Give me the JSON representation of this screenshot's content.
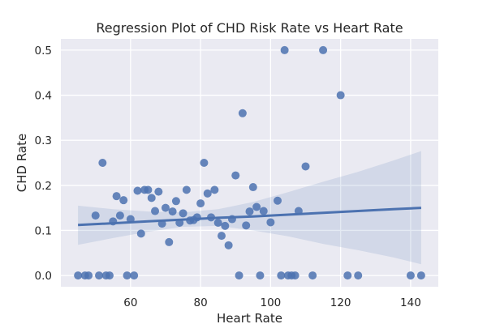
{
  "chart_data": {
    "type": "scatter",
    "title": "Regression Plot of CHD Risk Rate vs Heart Rate",
    "xlabel": "Heart Rate",
    "ylabel": "CHD Rate",
    "xlim": [
      40.1,
      147.9
    ],
    "ylim": [
      -0.025,
      0.525
    ],
    "xticks": [
      60,
      80,
      100,
      120,
      140
    ],
    "xtick_labels": [
      "60",
      "80",
      "100",
      "120",
      "140"
    ],
    "yticks": [
      0.0,
      0.1,
      0.2,
      0.3,
      0.4,
      0.5
    ],
    "ytick_labels": [
      "0.0",
      "0.1",
      "0.2",
      "0.3",
      "0.4",
      "0.5"
    ],
    "grid": true,
    "colors": {
      "background": "#eaeaf2",
      "grid": "#ffffff",
      "points": "#4c72b0",
      "line": "#4c72b0",
      "band": "#4c72b0"
    },
    "points": {
      "x": [
        45,
        47,
        48,
        50,
        51,
        52,
        53,
        54,
        55,
        56,
        57,
        58,
        59,
        60,
        61,
        62,
        63,
        64,
        65,
        66,
        67,
        68,
        69,
        70,
        71,
        72,
        73,
        74,
        75,
        76,
        77,
        78,
        79,
        80,
        81,
        82,
        83,
        84,
        85,
        86,
        87,
        88,
        89,
        90,
        91,
        92,
        93,
        94,
        95,
        96,
        97,
        98,
        100,
        102,
        103,
        104,
        105,
        106,
        107,
        108,
        110,
        112,
        115,
        120,
        122,
        125,
        140,
        143
      ],
      "y": [
        0.0,
        0.0,
        0.0,
        0.133,
        0.0,
        0.25,
        0.0,
        0.0,
        0.12,
        0.176,
        0.133,
        0.167,
        0.0,
        0.125,
        0.0,
        0.188,
        0.093,
        0.19,
        0.19,
        0.172,
        0.143,
        0.186,
        0.115,
        0.15,
        0.074,
        0.142,
        0.165,
        0.117,
        0.138,
        0.19,
        0.122,
        0.123,
        0.129,
        0.16,
        0.25,
        0.182,
        0.129,
        0.19,
        0.117,
        0.088,
        0.11,
        0.067,
        0.125,
        0.222,
        0.0,
        0.36,
        0.111,
        0.142,
        0.196,
        0.152,
        0.0,
        0.143,
        0.118,
        0.166,
        0.0,
        0.5,
        0.0,
        0.0,
        0.0,
        0.143,
        0.242,
        0.0,
        0.5,
        0.4,
        0.0,
        0.0,
        0.0,
        0.0
      ]
    },
    "regression": {
      "x": [
        45,
        55,
        65,
        75,
        85,
        95,
        105,
        115,
        125,
        135,
        143
      ],
      "y": [
        0.112,
        0.116,
        0.12,
        0.124,
        0.128,
        0.131,
        0.135,
        0.139,
        0.143,
        0.147,
        0.15
      ],
      "ci_upper": [
        0.155,
        0.147,
        0.142,
        0.14,
        0.147,
        0.163,
        0.185,
        0.208,
        0.23,
        0.255,
        0.276
      ],
      "ci_lower": [
        0.068,
        0.083,
        0.097,
        0.108,
        0.11,
        0.1,
        0.087,
        0.07,
        0.056,
        0.04,
        0.025
      ]
    }
  }
}
